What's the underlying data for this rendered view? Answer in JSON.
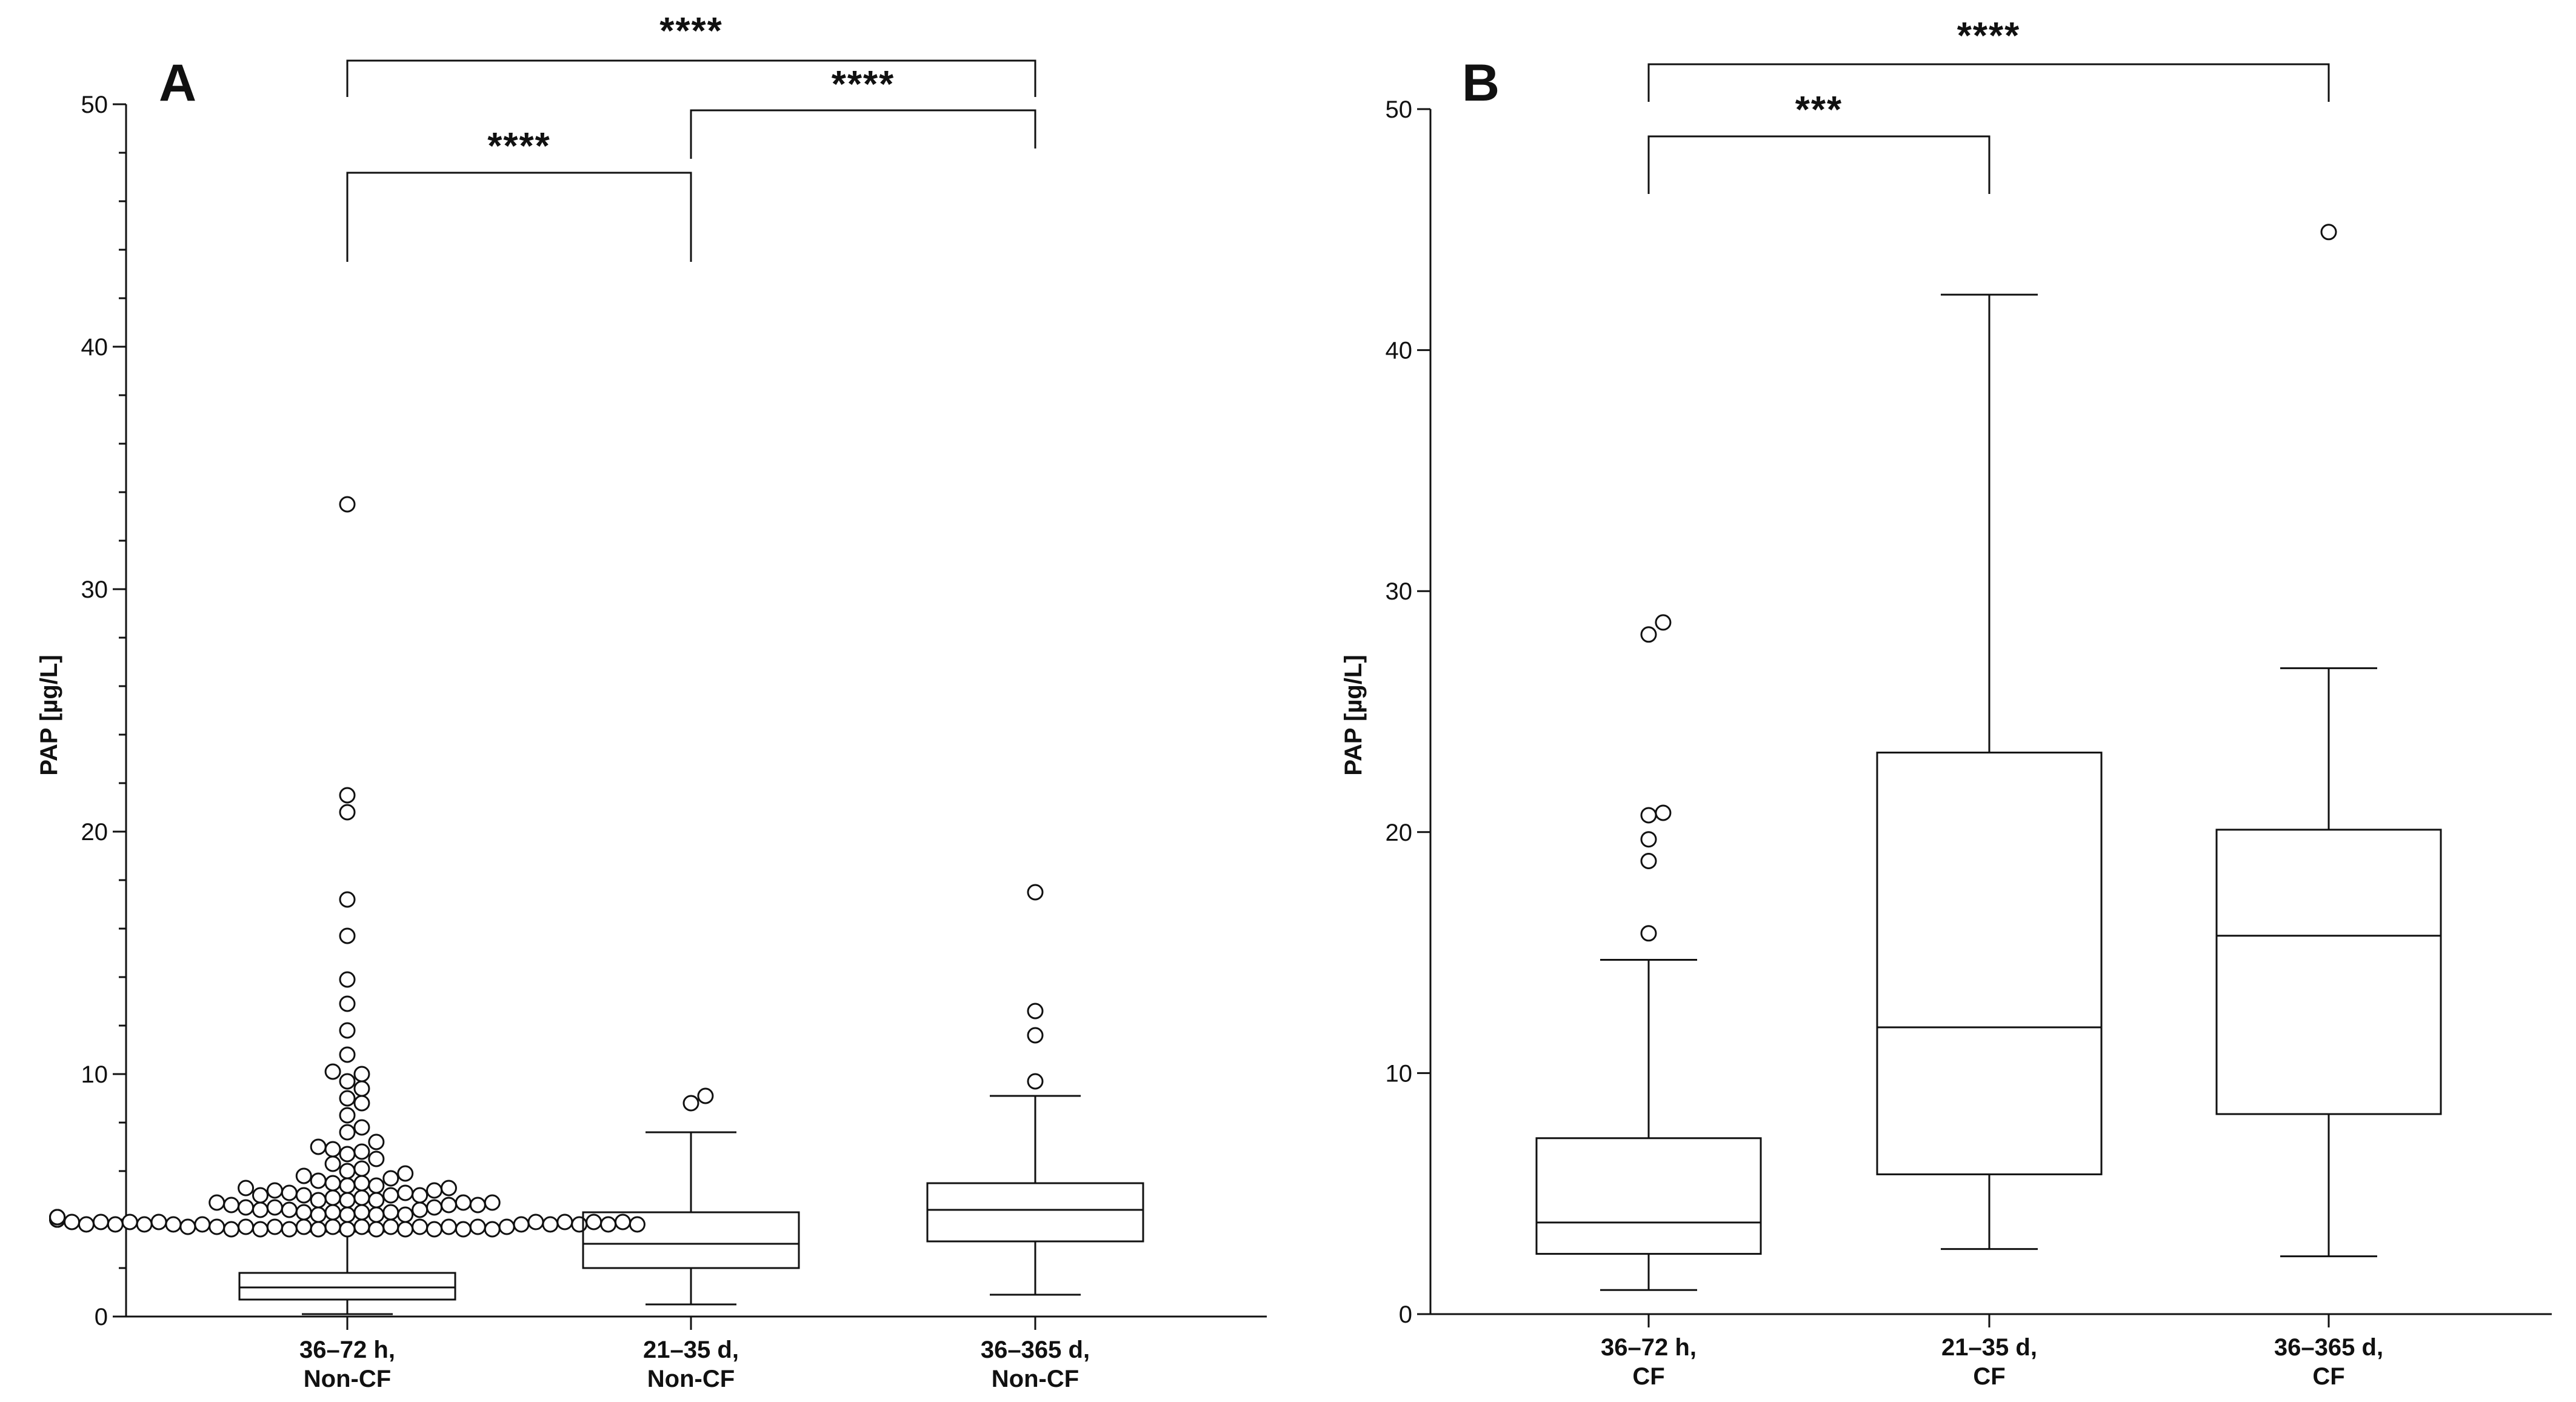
{
  "chart_data": [
    {
      "type": "box",
      "panel": "A",
      "ylabel": "PAP [µg/L]",
      "ylim": [
        0,
        50
      ],
      "yticks": [
        0,
        10,
        20,
        30,
        40,
        50
      ],
      "categories": [
        "36–72 h,\nNon-CF",
        "21–35 d,\nNon-CF",
        "36–365 d,\nNon-CF"
      ],
      "boxes": [
        {
          "category": "36–72 h,\nNon-CF",
          "whisker_low": 0.1,
          "q1": 0.7,
          "median": 1.2,
          "q3": 1.8,
          "whisker_high": 3.5,
          "outliers": [
            3.6,
            3.6,
            3.6,
            3.6,
            3.6,
            3.6,
            3.6,
            3.6,
            3.6,
            3.6,
            3.7,
            3.7,
            3.7,
            3.7,
            3.7,
            3.7,
            3.7,
            3.7,
            3.7,
            3.7,
            3.7,
            3.7,
            3.8,
            3.8,
            3.8,
            3.8,
            3.8,
            3.8,
            3.8,
            3.8,
            3.8,
            3.8,
            3.9,
            3.9,
            3.9,
            3.9,
            3.9,
            3.9,
            3.9,
            3.9,
            4.0,
            4.0,
            4.0,
            4.0,
            4.0,
            4.0,
            4.0,
            4.0,
            4.1,
            4.1,
            4.1,
            4.1,
            4.1,
            4.2,
            4.2,
            4.2,
            4.2,
            4.3,
            4.3,
            4.3,
            4.3,
            4.4,
            4.4,
            4.4,
            4.5,
            4.5,
            4.5,
            4.6,
            4.6,
            4.6,
            4.7,
            4.7,
            4.7,
            4.8,
            4.8,
            4.8,
            4.9,
            4.9,
            5.0,
            5.0,
            5.0,
            5.0,
            5.1,
            5.1,
            5.2,
            5.2,
            5.3,
            5.3,
            5.4,
            5.4,
            5.5,
            5.5,
            5.6,
            5.7,
            5.8,
            5.9,
            6.0,
            6.1,
            6.3,
            6.5,
            6.7,
            6.8,
            6.9,
            7.0,
            7.2,
            7.6,
            7.8,
            8.3,
            8.8,
            9.0,
            9.4,
            9.7,
            10.0,
            10.1,
            10.8,
            11.8,
            12.9,
            13.9,
            15.7,
            17.2,
            20.8,
            21.5,
            33.5
          ]
        },
        {
          "category": "21–35 d,\nNon-CF",
          "whisker_low": 0.5,
          "q1": 2.0,
          "median": 3.0,
          "q3": 4.3,
          "whisker_high": 7.6,
          "outliers": [
            8.8,
            9.1
          ]
        },
        {
          "category": "36–365 d,\nNon-CF",
          "whisker_low": 0.9,
          "q1": 3.1,
          "median": 4.4,
          "q3": 5.5,
          "whisker_high": 9.1,
          "outliers": [
            9.7,
            11.6,
            12.6,
            17.5
          ]
        }
      ],
      "significance": [
        {
          "from": 0,
          "to": 1,
          "label": "****"
        },
        {
          "from": 1,
          "to": 2,
          "label": "****"
        },
        {
          "from": 0,
          "to": 2,
          "label": "****"
        }
      ]
    },
    {
      "type": "box",
      "panel": "B",
      "ylabel": "PAP [µg/L]",
      "ylim": [
        0,
        50
      ],
      "yticks": [
        0,
        10,
        20,
        30,
        40,
        50
      ],
      "categories": [
        "36–72 h,\nCF",
        "21–35 d,\nCF",
        "36–365 d,\nCF"
      ],
      "boxes": [
        {
          "category": "36–72 h,\nCF",
          "whisker_low": 1.0,
          "q1": 2.5,
          "median": 3.8,
          "q3": 7.3,
          "whisker_high": 14.7,
          "outliers": [
            15.8,
            18.8,
            19.7,
            20.7,
            20.8,
            28.2,
            28.7
          ]
        },
        {
          "category": "21–35 d,\nCF",
          "whisker_low": 2.7,
          "q1": 5.8,
          "median": 11.9,
          "q3": 23.3,
          "whisker_high": 42.3,
          "outliers": []
        },
        {
          "category": "36–365 d,\nCF",
          "whisker_low": 2.4,
          "q1": 8.3,
          "median": 15.7,
          "q3": 20.1,
          "whisker_high": 26.8,
          "outliers": [
            44.9
          ]
        }
      ],
      "significance": [
        {
          "from": 0,
          "to": 1,
          "label": "***"
        },
        {
          "from": 0,
          "to": 2,
          "label": "****"
        }
      ]
    }
  ]
}
